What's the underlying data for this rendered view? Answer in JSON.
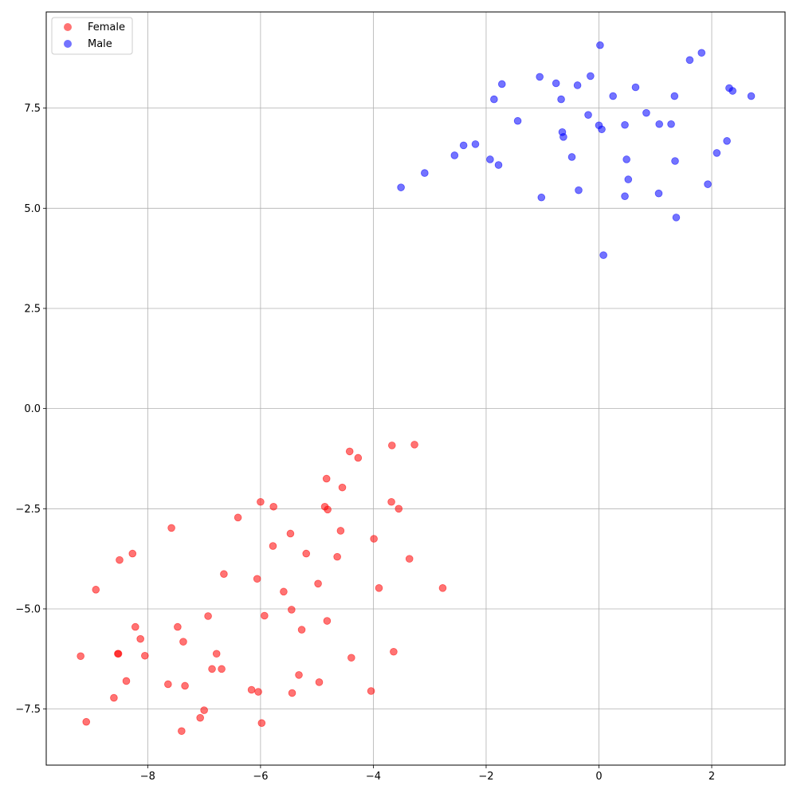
{
  "chart_data": {
    "type": "scatter",
    "title": "",
    "xlabel": "",
    "ylabel": "",
    "xlim": [
      -9.8,
      3.3
    ],
    "ylim": [
      -8.9,
      9.9
    ],
    "xticks": [
      -8,
      -6,
      -4,
      -2,
      0,
      2
    ],
    "xtick_labels": [
      "−8",
      "−6",
      "−4",
      "−2",
      "0",
      "2"
    ],
    "yticks": [
      -7.5,
      -5.0,
      -2.5,
      0.0,
      2.5,
      5.0,
      7.5
    ],
    "ytick_labels": [
      "−7.5",
      "−5.0",
      "−2.5",
      "0.0",
      "2.5",
      "5.0",
      "7.5"
    ],
    "grid": true,
    "legend_position": "upper-left",
    "series": [
      {
        "name": "Female",
        "color": "#ff0000",
        "alpha": 0.55,
        "points": [
          [
            -3.27,
            -0.9
          ],
          [
            -3.67,
            -0.92
          ],
          [
            -4.42,
            -1.07
          ],
          [
            -4.27,
            -1.23
          ],
          [
            -4.83,
            -1.75
          ],
          [
            -4.55,
            -1.97
          ],
          [
            -6.0,
            -2.33
          ],
          [
            -5.77,
            -2.45
          ],
          [
            -4.86,
            -2.45
          ],
          [
            -4.81,
            -2.52
          ],
          [
            -3.68,
            -2.33
          ],
          [
            -3.55,
            -2.5
          ],
          [
            -6.4,
            -2.72
          ],
          [
            -7.58,
            -2.98
          ],
          [
            -5.47,
            -3.12
          ],
          [
            -4.58,
            -3.05
          ],
          [
            -3.99,
            -3.25
          ],
          [
            -5.78,
            -3.43
          ],
          [
            -5.19,
            -3.62
          ],
          [
            -4.64,
            -3.7
          ],
          [
            -8.27,
            -3.62
          ],
          [
            -8.5,
            -3.78
          ],
          [
            -3.36,
            -3.75
          ],
          [
            -6.65,
            -4.13
          ],
          [
            -6.06,
            -4.25
          ],
          [
            -4.98,
            -4.37
          ],
          [
            -5.59,
            -4.57
          ],
          [
            -8.92,
            -4.52
          ],
          [
            -3.9,
            -4.48
          ],
          [
            -2.77,
            -4.48
          ],
          [
            -5.45,
            -5.02
          ],
          [
            -6.93,
            -5.18
          ],
          [
            -5.93,
            -5.17
          ],
          [
            -4.82,
            -5.3
          ],
          [
            -8.22,
            -5.45
          ],
          [
            -7.47,
            -5.45
          ],
          [
            -5.27,
            -5.52
          ],
          [
            -8.13,
            -5.75
          ],
          [
            -7.37,
            -5.82
          ],
          [
            -8.52,
            -6.12
          ],
          [
            -8.05,
            -6.17
          ],
          [
            -6.78,
            -6.12
          ],
          [
            -4.39,
            -6.22
          ],
          [
            -3.64,
            -6.07
          ],
          [
            -9.19,
            -6.18
          ],
          [
            -6.86,
            -6.5
          ],
          [
            -6.69,
            -6.5
          ],
          [
            -5.32,
            -6.65
          ],
          [
            -4.96,
            -6.83
          ],
          [
            -8.38,
            -6.8
          ],
          [
            -7.64,
            -6.88
          ],
          [
            -7.34,
            -6.92
          ],
          [
            -6.16,
            -7.02
          ],
          [
            -6.04,
            -7.07
          ],
          [
            -5.44,
            -7.1
          ],
          [
            -4.04,
            -7.05
          ],
          [
            -8.6,
            -7.22
          ],
          [
            -7.0,
            -7.53
          ],
          [
            -7.07,
            -7.72
          ],
          [
            -9.09,
            -7.82
          ],
          [
            -5.98,
            -7.85
          ],
          [
            -7.4,
            -8.05
          ],
          [
            -8.53,
            -6.12
          ]
        ]
      },
      {
        "name": "Male",
        "color": "#0000ff",
        "alpha": 0.55,
        "points": [
          [
            0.02,
            9.07
          ],
          [
            1.82,
            8.88
          ],
          [
            1.61,
            8.7
          ],
          [
            -1.05,
            8.28
          ],
          [
            -0.15,
            8.3
          ],
          [
            -1.72,
            8.1
          ],
          [
            -0.76,
            8.12
          ],
          [
            -0.38,
            8.07
          ],
          [
            0.65,
            8.02
          ],
          [
            2.31,
            8.0
          ],
          [
            2.37,
            7.93
          ],
          [
            -1.86,
            7.72
          ],
          [
            -0.67,
            7.72
          ],
          [
            0.25,
            7.8
          ],
          [
            1.34,
            7.8
          ],
          [
            2.7,
            7.8
          ],
          [
            -0.19,
            7.33
          ],
          [
            0.84,
            7.38
          ],
          [
            -1.44,
            7.18
          ],
          [
            0.0,
            7.07
          ],
          [
            0.46,
            7.08
          ],
          [
            1.07,
            7.1
          ],
          [
            1.28,
            7.1
          ],
          [
            0.05,
            6.97
          ],
          [
            -0.65,
            6.9
          ],
          [
            -0.63,
            6.78
          ],
          [
            2.27,
            6.68
          ],
          [
            -2.19,
            6.6
          ],
          [
            -2.4,
            6.57
          ],
          [
            -2.56,
            6.32
          ],
          [
            -0.48,
            6.28
          ],
          [
            2.09,
            6.38
          ],
          [
            -1.93,
            6.22
          ],
          [
            0.49,
            6.22
          ],
          [
            1.35,
            6.18
          ],
          [
            -1.78,
            6.08
          ],
          [
            -3.09,
            5.88
          ],
          [
            0.52,
            5.72
          ],
          [
            1.93,
            5.6
          ],
          [
            -3.51,
            5.52
          ],
          [
            -0.36,
            5.45
          ],
          [
            1.06,
            5.37
          ],
          [
            0.46,
            5.3
          ],
          [
            -1.02,
            5.27
          ],
          [
            1.37,
            4.77
          ],
          [
            0.08,
            3.83
          ]
        ]
      }
    ]
  }
}
